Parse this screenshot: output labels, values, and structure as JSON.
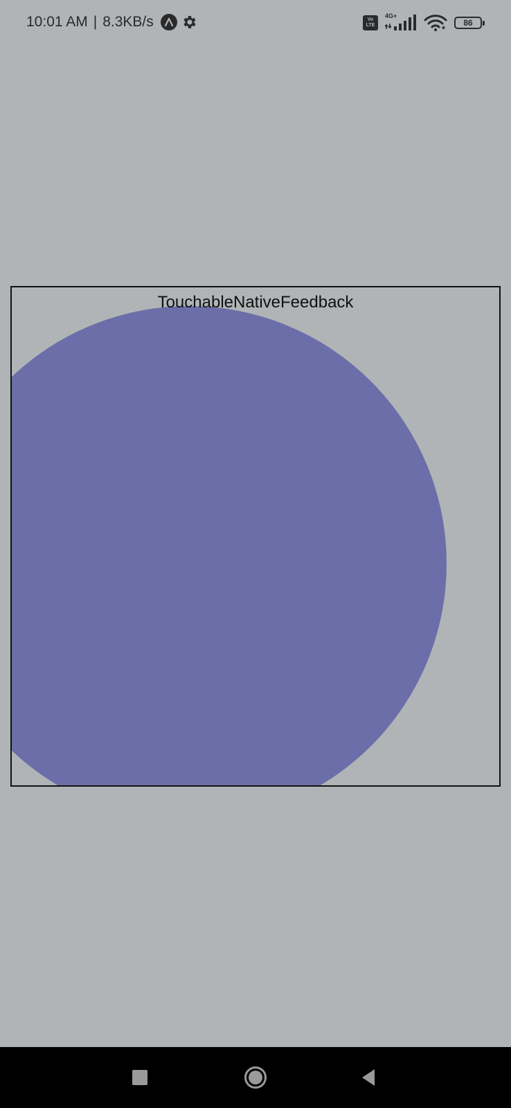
{
  "status_bar": {
    "time": "10:01 AM",
    "separator": "|",
    "net_speed": "8.3KB/s",
    "volte_top": "Vo",
    "volte_bottom": "LTE",
    "network_type": "4G+",
    "battery": "86",
    "icons": [
      "app-notification-icon",
      "settings-gear-icon",
      "volte-icon",
      "cellular-signal-icon",
      "wifi-icon",
      "battery-icon"
    ]
  },
  "main": {
    "touchable_label": "TouchableNativeFeedback",
    "ripple_color": "#6b6ea8",
    "background_color": "#b1b4b6"
  },
  "nav_bar": {
    "icons": [
      "recents-square-icon",
      "home-circle-icon",
      "back-triangle-icon"
    ]
  }
}
